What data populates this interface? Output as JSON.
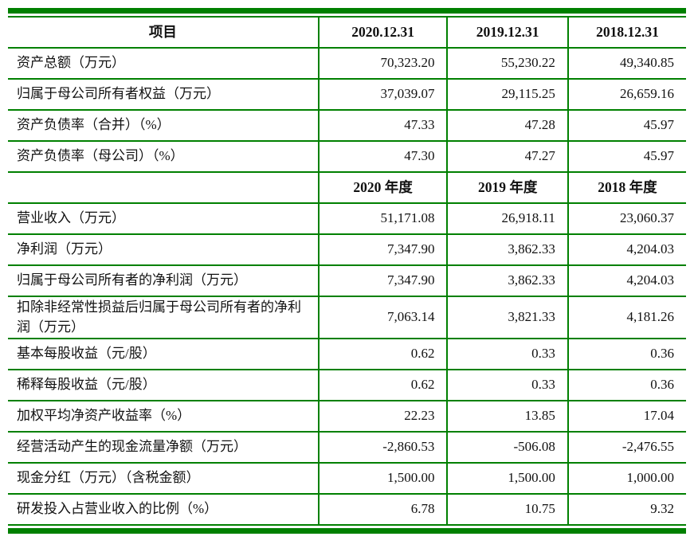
{
  "document": {
    "type": "financial-summary-table",
    "accent_border_color": "#008000",
    "text_color": "#111111"
  },
  "table": {
    "sections": [
      {
        "header": {
          "item": "项目",
          "cols": [
            "2020.12.31",
            "2019.12.31",
            "2018.12.31"
          ]
        },
        "rows": [
          {
            "label": "资产总额（万元）",
            "values": [
              "70,323.20",
              "55,230.22",
              "49,340.85"
            ]
          },
          {
            "label": "归属于母公司所有者权益（万元）",
            "values": [
              "37,039.07",
              "29,115.25",
              "26,659.16"
            ]
          },
          {
            "label": "资产负债率（合并）（%）",
            "values": [
              "47.33",
              "47.28",
              "45.97"
            ]
          },
          {
            "label": "资产负债率（母公司）（%）",
            "values": [
              "47.30",
              "47.27",
              "45.97"
            ]
          }
        ]
      },
      {
        "header": {
          "item": "",
          "cols": [
            "2020 年度",
            "2019 年度",
            "2018 年度"
          ]
        },
        "rows": [
          {
            "label": "营业收入（万元）",
            "values": [
              "51,171.08",
              "26,918.11",
              "23,060.37"
            ]
          },
          {
            "label": "净利润（万元）",
            "values": [
              "7,347.90",
              "3,862.33",
              "4,204.03"
            ]
          },
          {
            "label": "归属于母公司所有者的净利润（万元）",
            "values": [
              "7,347.90",
              "3,862.33",
              "4,204.03"
            ]
          },
          {
            "label": "扣除非经常性损益后归属于母公司所有者的净利润（万元）",
            "values": [
              "7,063.14",
              "3,821.33",
              "4,181.26"
            ]
          },
          {
            "label": "基本每股收益（元/股）",
            "values": [
              "0.62",
              "0.33",
              "0.36"
            ]
          },
          {
            "label": "稀释每股收益（元/股）",
            "values": [
              "0.62",
              "0.33",
              "0.36"
            ]
          },
          {
            "label": "加权平均净资产收益率（%）",
            "values": [
              "22.23",
              "13.85",
              "17.04"
            ]
          },
          {
            "label": "经营活动产生的现金流量净额（万元）",
            "values": [
              "-2,860.53",
              "-506.08",
              "-2,476.55"
            ]
          },
          {
            "label": "现金分红（万元）（含税金额）",
            "values": [
              "1,500.00",
              "1,500.00",
              "1,000.00"
            ]
          },
          {
            "label": "研发投入占营业收入的比例（%）",
            "values": [
              "6.78",
              "10.75",
              "9.32"
            ]
          }
        ]
      }
    ]
  }
}
